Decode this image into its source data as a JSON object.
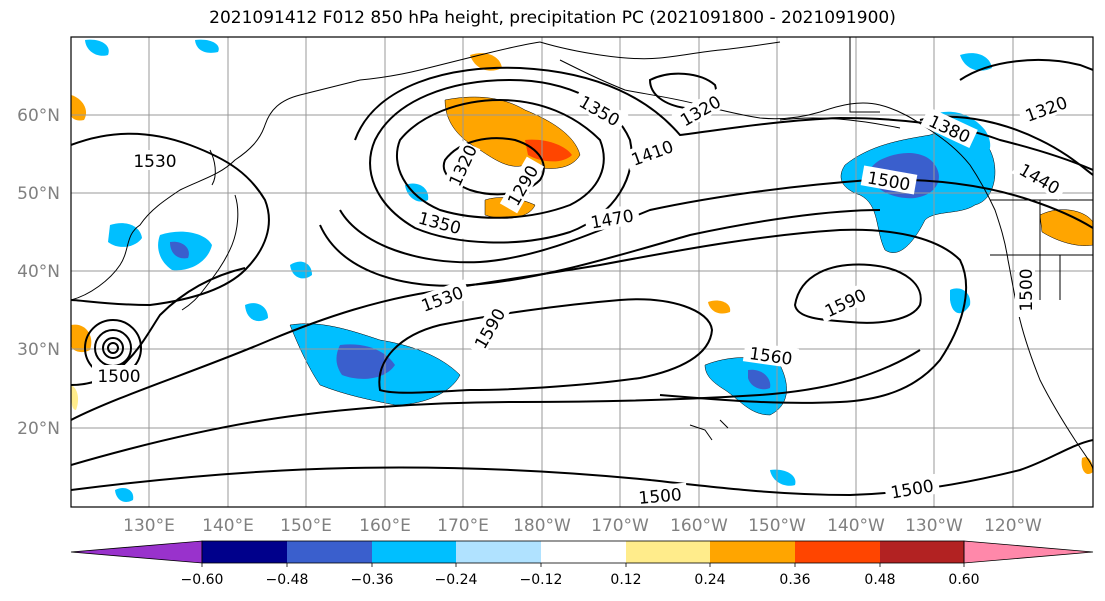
{
  "title": "2021091412 F012 850 hPa height, precipitation PC (2021091800 - 2021091900)",
  "lat_labels": [
    "60°N",
    "50°N",
    "40°N",
    "30°N",
    "20°N"
  ],
  "lon_labels": [
    "130°E",
    "140°E",
    "150°E",
    "160°E",
    "170°E",
    "180°W",
    "170°W",
    "160°W",
    "150°W",
    "140°W",
    "130°W",
    "120°W"
  ],
  "colorbar": {
    "colors": [
      "#9932cc",
      "#00008b",
      "#3a5fcd",
      "#00bfff",
      "#b0e2ff",
      "#ffffff",
      "#ffec8b",
      "#ffa500",
      "#ff4500",
      "#b22222",
      "#ff88aa"
    ],
    "tick_labels": [
      "−0.60",
      "−0.48",
      "−0.36",
      "−0.24",
      "−0.12",
      "0.12",
      "0.24",
      "0.36",
      "0.48",
      "0.60"
    ]
  },
  "contour_labels": [
    "1530",
    "1320",
    "1350",
    "1350",
    "1320",
    "1410",
    "1470",
    "1290",
    "1380",
    "1500",
    "1440",
    "1320",
    "1530",
    "1590",
    "1590",
    "1560",
    "1500",
    "1500",
    "1500",
    "1500"
  ],
  "colors": {
    "blue_light": "#00bfff",
    "blue_mid": "#3a5fcd",
    "blue_pale": "#b0e2ff",
    "orange": "#ffa500",
    "red_orange": "#ff4500",
    "yellow": "#ffec8b"
  }
}
